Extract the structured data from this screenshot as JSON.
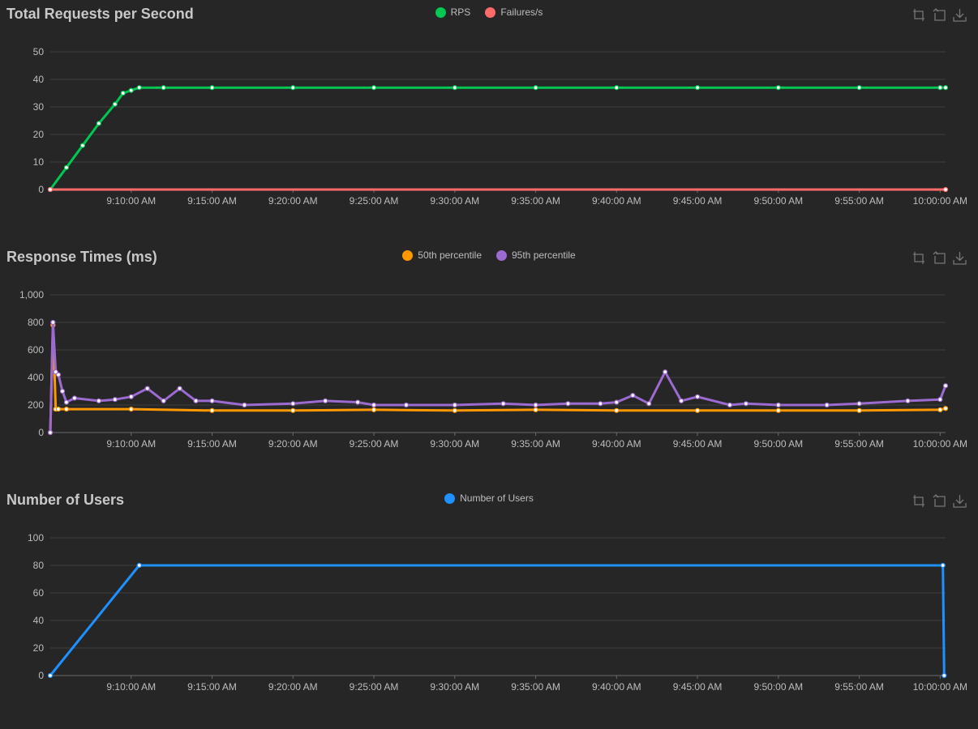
{
  "toolbox_icons": [
    "zoom-icon",
    "restore-icon",
    "download-icon"
  ],
  "x_tick_labels": [
    "9:10:00 AM",
    "9:15:00 AM",
    "9:20:00 AM",
    "9:25:00 AM",
    "9:30:00 AM",
    "9:35:00 AM",
    "9:40:00 AM",
    "9:45:00 AM",
    "9:50:00 AM",
    "9:55:00 AM",
    "10:00:00 AM"
  ],
  "chart_data": [
    {
      "type": "line",
      "title": "Total Requests per Second",
      "xlabel": "",
      "ylabel": "",
      "x_axis": "time",
      "x_range": [
        "9:05:00 AM",
        "10:00:20 AM"
      ],
      "ylim": [
        0,
        50
      ],
      "yticks": [
        0,
        10,
        20,
        30,
        40,
        50
      ],
      "grid": true,
      "legend_placement": "top-center",
      "series": [
        {
          "name": "RPS",
          "color": "#00c853",
          "x": [
            "9:05:00 AM",
            "9:06:00 AM",
            "9:07:00 AM",
            "9:08:00 AM",
            "9:09:00 AM",
            "9:09:30 AM",
            "9:10:00 AM",
            "9:10:30 AM",
            "9:12:00 AM",
            "9:15:00 AM",
            "9:20:00 AM",
            "9:25:00 AM",
            "9:30:00 AM",
            "9:35:00 AM",
            "9:40:00 AM",
            "9:45:00 AM",
            "9:50:00 AM",
            "9:55:00 AM",
            "10:00:00 AM",
            "10:00:20 AM"
          ],
          "y": [
            0,
            8,
            16,
            24,
            31,
            35,
            36,
            37,
            37,
            37,
            37,
            37,
            37,
            37,
            37,
            37,
            37,
            37,
            37,
            37
          ]
        },
        {
          "name": "Failures/s",
          "color": "#ff6b6b",
          "x": [
            "9:05:00 AM",
            "10:00:20 AM"
          ],
          "y": [
            0,
            0
          ]
        }
      ]
    },
    {
      "type": "line",
      "title": "Response Times (ms)",
      "xlabel": "",
      "ylabel": "",
      "x_axis": "time",
      "x_range": [
        "9:05:00 AM",
        "10:00:20 AM"
      ],
      "ylim": [
        0,
        1000
      ],
      "yticks": [
        0,
        200,
        400,
        600,
        800,
        1000
      ],
      "ytick_labels": [
        "0",
        "200",
        "400",
        "600",
        "800",
        "1,000"
      ],
      "grid": true,
      "legend_placement": "top-center",
      "series": [
        {
          "name": "50th percentile",
          "color": "#ff9800",
          "x": [
            "9:05:00 AM",
            "9:05:10 AM",
            "9:05:20 AM",
            "9:05:30 AM",
            "9:06:00 AM",
            "9:10:00 AM",
            "9:15:00 AM",
            "9:20:00 AM",
            "9:25:00 AM",
            "9:30:00 AM",
            "9:35:00 AM",
            "9:40:00 AM",
            "9:45:00 AM",
            "9:50:00 AM",
            "9:55:00 AM",
            "10:00:00 AM",
            "10:00:20 AM"
          ],
          "y": [
            0,
            780,
            170,
            170,
            170,
            170,
            160,
            160,
            165,
            160,
            165,
            160,
            160,
            160,
            160,
            165,
            175
          ]
        },
        {
          "name": "95th percentile",
          "color": "#9c6ad1",
          "x": [
            "9:05:00 AM",
            "9:05:10 AM",
            "9:05:20 AM",
            "9:05:30 AM",
            "9:05:45 AM",
            "9:06:00 AM",
            "9:06:30 AM",
            "9:08:00 AM",
            "9:09:00 AM",
            "9:10:00 AM",
            "9:11:00 AM",
            "9:12:00 AM",
            "9:13:00 AM",
            "9:14:00 AM",
            "9:15:00 AM",
            "9:17:00 AM",
            "9:20:00 AM",
            "9:22:00 AM",
            "9:24:00 AM",
            "9:25:00 AM",
            "9:27:00 AM",
            "9:30:00 AM",
            "9:33:00 AM",
            "9:35:00 AM",
            "9:37:00 AM",
            "9:39:00 AM",
            "9:40:00 AM",
            "9:41:00 AM",
            "9:42:00 AM",
            "9:43:00 AM",
            "9:44:00 AM",
            "9:45:00 AM",
            "9:47:00 AM",
            "9:48:00 AM",
            "9:50:00 AM",
            "9:53:00 AM",
            "9:55:00 AM",
            "9:58:00 AM",
            "10:00:00 AM",
            "10:00:20 AM"
          ],
          "y": [
            0,
            800,
            440,
            420,
            300,
            220,
            250,
            230,
            240,
            260,
            320,
            230,
            320,
            230,
            230,
            200,
            210,
            230,
            220,
            200,
            200,
            200,
            210,
            200,
            210,
            210,
            220,
            270,
            210,
            440,
            230,
            260,
            200,
            210,
            200,
            200,
            210,
            230,
            240,
            340
          ]
        }
      ]
    },
    {
      "type": "line",
      "title": "Number of Users",
      "xlabel": "",
      "ylabel": "",
      "x_axis": "time",
      "x_range": [
        "9:05:00 AM",
        "10:00:20 AM"
      ],
      "ylim": [
        0,
        100
      ],
      "yticks": [
        0,
        20,
        40,
        60,
        80,
        100
      ],
      "grid": true,
      "legend_placement": "top-center",
      "series": [
        {
          "name": "Number of Users",
          "color": "#1e90ff",
          "x": [
            "9:05:00 AM",
            "9:10:30 AM",
            "10:00:10 AM",
            "10:00:15 AM"
          ],
          "y": [
            0,
            80,
            80,
            0
          ]
        }
      ]
    }
  ]
}
